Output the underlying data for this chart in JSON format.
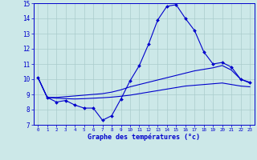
{
  "x": [
    0,
    1,
    2,
    3,
    4,
    5,
    6,
    7,
    8,
    9,
    10,
    11,
    12,
    13,
    14,
    15,
    16,
    17,
    18,
    19,
    20,
    21,
    22,
    23
  ],
  "line1": [
    10.1,
    8.8,
    8.5,
    8.6,
    8.3,
    8.1,
    8.1,
    7.3,
    7.6,
    8.7,
    9.9,
    10.9,
    12.3,
    13.9,
    14.8,
    14.9,
    14.0,
    13.2,
    11.8,
    11.0,
    11.1,
    10.8,
    10.0,
    9.8
  ],
  "line2": [
    10.1,
    8.8,
    8.8,
    8.85,
    8.9,
    8.95,
    9.0,
    9.05,
    9.15,
    9.3,
    9.5,
    9.65,
    9.8,
    9.95,
    10.1,
    10.25,
    10.4,
    10.55,
    10.65,
    10.75,
    10.9,
    10.6,
    10.0,
    9.75
  ],
  "line3": [
    10.1,
    8.8,
    8.75,
    8.72,
    8.7,
    8.72,
    8.75,
    8.78,
    8.82,
    8.88,
    8.95,
    9.05,
    9.15,
    9.25,
    9.35,
    9.45,
    9.55,
    9.6,
    9.65,
    9.7,
    9.75,
    9.65,
    9.55,
    9.5
  ],
  "line_color": "#0000cc",
  "bg_color": "#cce8e8",
  "grid_color": "#aacccc",
  "xlabel": "Graphe des températures (°c)",
  "ylim": [
    7,
    15
  ],
  "xlim": [
    -0.5,
    23.5
  ],
  "yticks": [
    7,
    8,
    9,
    10,
    11,
    12,
    13,
    14,
    15
  ],
  "xticks": [
    0,
    1,
    2,
    3,
    4,
    5,
    6,
    7,
    8,
    9,
    10,
    11,
    12,
    13,
    14,
    15,
    16,
    17,
    18,
    19,
    20,
    21,
    22,
    23
  ]
}
